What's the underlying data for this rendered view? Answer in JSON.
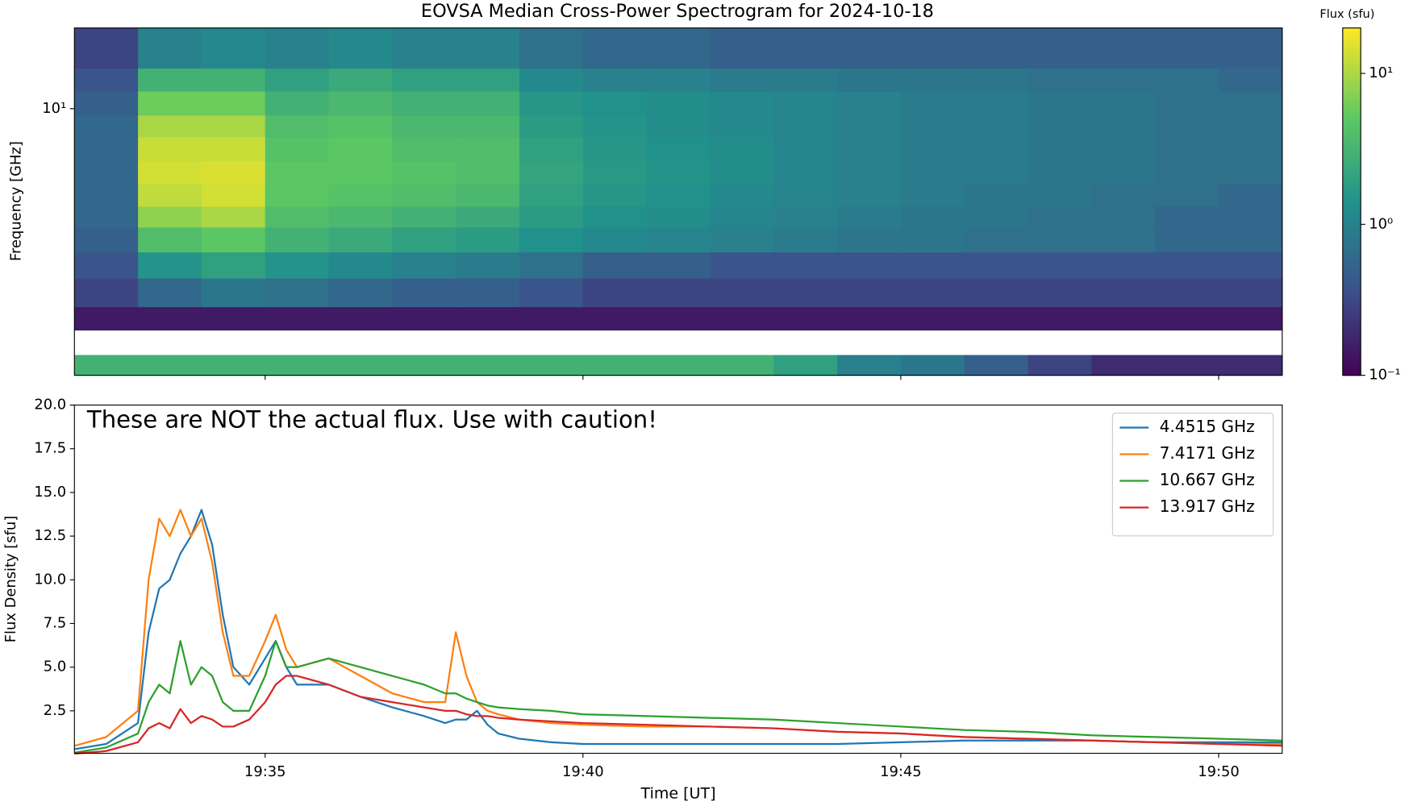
{
  "chart_data": [
    {
      "type": "heatmap",
      "title": "EOVSA Median Cross-Power Spectrogram for 2024-10-18",
      "ylabel": "Frequency [GHz]",
      "x_edges": [
        "19:32",
        "19:33",
        "19:34",
        "19:35",
        "19:36",
        "19:37",
        "19:38",
        "19:39",
        "19:40",
        "19:41",
        "19:42",
        "19:43",
        "19:44",
        "19:45",
        "19:46",
        "19:47",
        "19:48",
        "19:49",
        "19:50",
        "19:51"
      ],
      "y_edges": [
        1.2,
        1.41,
        1.72,
        2.07,
        2.6,
        3.2,
        3.9,
        4.6,
        5.5,
        6.6,
        8,
        9.5,
        11.5,
        13.8,
        19
      ],
      "values": [
        [
          3,
          3,
          3,
          3,
          3,
          3,
          3,
          3,
          3,
          3,
          3,
          2,
          1,
          0.8,
          0.5,
          0.3,
          0.2,
          0.2,
          0.2
        ],
        [
          null,
          null,
          null,
          null,
          null,
          null,
          null,
          null,
          null,
          null,
          null,
          null,
          null,
          null,
          null,
          null,
          null,
          null,
          null
        ],
        [
          0.15,
          0.15,
          0.15,
          0.15,
          0.15,
          0.15,
          0.15,
          0.15,
          0.15,
          0.15,
          0.15,
          0.15,
          0.15,
          0.15,
          0.15,
          0.15,
          0.15,
          0.15,
          0.15
        ],
        [
          0.3,
          0.6,
          0.8,
          0.7,
          0.6,
          0.5,
          0.5,
          0.4,
          0.3,
          0.3,
          0.3,
          0.3,
          0.3,
          0.3,
          0.3,
          0.3,
          0.3,
          0.3,
          0.3
        ],
        [
          0.4,
          1.5,
          2,
          1.5,
          1.2,
          1.0,
          0.9,
          0.7,
          0.5,
          0.5,
          0.4,
          0.4,
          0.4,
          0.4,
          0.4,
          0.4,
          0.4,
          0.4,
          0.4
        ],
        [
          0.5,
          4,
          5,
          3,
          2.5,
          2,
          1.8,
          1.4,
          1.2,
          1.1,
          1.0,
          0.9,
          0.8,
          0.8,
          0.7,
          0.7,
          0.7,
          0.6,
          0.6
        ],
        [
          0.6,
          8,
          10,
          4,
          3.5,
          3,
          2.5,
          1.8,
          1.4,
          1.3,
          1.1,
          1.0,
          0.9,
          0.8,
          0.8,
          0.7,
          0.7,
          0.6,
          0.6
        ],
        [
          0.6,
          12,
          14,
          5,
          4.5,
          4,
          3.5,
          2,
          1.6,
          1.4,
          1.2,
          1.1,
          1.0,
          0.9,
          0.8,
          0.8,
          0.7,
          0.7,
          0.6
        ],
        [
          0.6,
          14,
          15,
          5,
          5,
          4.5,
          4,
          2.2,
          1.7,
          1.5,
          1.3,
          1.1,
          1.0,
          0.9,
          0.9,
          0.8,
          0.8,
          0.7,
          0.7
        ],
        [
          0.6,
          13,
          13,
          4.5,
          5,
          4,
          4,
          2,
          1.6,
          1.4,
          1.3,
          1.1,
          1.0,
          0.9,
          0.9,
          0.8,
          0.8,
          0.7,
          0.7
        ],
        [
          0.6,
          10,
          10,
          4,
          4.5,
          3.5,
          3.5,
          1.8,
          1.5,
          1.3,
          1.2,
          1.1,
          1.0,
          0.9,
          0.9,
          0.8,
          0.8,
          0.7,
          0.7
        ],
        [
          0.5,
          6,
          6,
          3,
          3.5,
          3,
          3,
          1.6,
          1.4,
          1.3,
          1.2,
          1.1,
          1.0,
          0.9,
          0.9,
          0.8,
          0.8,
          0.7,
          0.7
        ],
        [
          0.4,
          3,
          3,
          2,
          2.5,
          2,
          2,
          1.2,
          1.0,
          1.0,
          0.9,
          0.9,
          0.8,
          0.8,
          0.8,
          0.7,
          0.7,
          0.7,
          0.6
        ],
        [
          0.3,
          1,
          1.2,
          1,
          1.2,
          1,
          1,
          0.7,
          0.6,
          0.6,
          0.5,
          0.5,
          0.5,
          0.5,
          0.5,
          0.5,
          0.5,
          0.5,
          0.5
        ]
      ],
      "yscale": "log",
      "ylim": [
        1.2,
        19
      ],
      "yticks": [
        {
          "value": 10,
          "label": "10¹"
        }
      ],
      "xlim": [
        "19:32",
        "19:51"
      ],
      "xticks": [
        "19:35",
        "19:40",
        "19:45",
        "19:50"
      ],
      "colormap": "viridis",
      "colorbar": {
        "label": "Flux (sfu)",
        "scale": "log",
        "lim": [
          0.1,
          20
        ],
        "ticks": [
          {
            "value": 0.1,
            "label": "10⁻¹"
          },
          {
            "value": 1,
            "label": "10⁰"
          },
          {
            "value": 10,
            "label": "10¹"
          }
        ]
      }
    },
    {
      "type": "line",
      "xlabel": "Time [UT]",
      "ylabel": "Flux Density [sfu]",
      "annotation": "These are NOT the actual flux. Use with caution!",
      "x": [
        "19:32:00",
        "19:32:30",
        "19:33:00",
        "19:33:10",
        "19:33:20",
        "19:33:30",
        "19:33:40",
        "19:33:50",
        "19:34:00",
        "19:34:10",
        "19:34:20",
        "19:34:30",
        "19:34:45",
        "19:35:00",
        "19:35:10",
        "19:35:20",
        "19:35:30",
        "19:36:00",
        "19:36:30",
        "19:37:00",
        "19:37:30",
        "19:37:50",
        "19:38:00",
        "19:38:10",
        "19:38:20",
        "19:38:30",
        "19:38:40",
        "19:39:00",
        "19:39:30",
        "19:40:00",
        "19:41:00",
        "19:42:00",
        "19:43:00",
        "19:44:00",
        "19:45:00",
        "19:46:00",
        "19:47:00",
        "19:48:00",
        "19:49:00",
        "19:50:00",
        "19:51:00"
      ],
      "series": [
        {
          "name": "4.4515 GHz",
          "color": "#1f77b4",
          "values": [
            0.3,
            0.6,
            1.8,
            7,
            9.5,
            10,
            11.5,
            12.5,
            14,
            12,
            8,
            5,
            4,
            5.5,
            6.5,
            5,
            4,
            4,
            3.3,
            2.7,
            2.2,
            1.8,
            2,
            2,
            2.5,
            1.7,
            1.2,
            0.9,
            0.7,
            0.6,
            0.6,
            0.6,
            0.6,
            0.6,
            0.7,
            0.8,
            0.8,
            0.8,
            0.7,
            0.7,
            0.7
          ]
        },
        {
          "name": "7.4171 GHz",
          "color": "#ff7f0e",
          "values": [
            0.5,
            1.0,
            2.5,
            10,
            13.5,
            12.5,
            14,
            12.5,
            13.5,
            11,
            7,
            4.5,
            4.5,
            6.5,
            8,
            6,
            5,
            5.5,
            4.5,
            3.5,
            3,
            3,
            7,
            4.5,
            3,
            2.5,
            2.3,
            2.0,
            1.8,
            1.7,
            1.6,
            1.6,
            1.5,
            1.3,
            1.2,
            1.0,
            0.9,
            0.8,
            0.7,
            0.6,
            0.6
          ]
        },
        {
          "name": "10.667 GHz",
          "color": "#2ca02c",
          "values": [
            0.1,
            0.4,
            1.2,
            3,
            4,
            3.5,
            6.5,
            4,
            5,
            4.5,
            3,
            2.5,
            2.5,
            4.5,
            6.5,
            5,
            5,
            5.5,
            5,
            4.5,
            4,
            3.5,
            3.5,
            3.2,
            3,
            2.8,
            2.7,
            2.6,
            2.5,
            2.3,
            2.2,
            2.1,
            2.0,
            1.8,
            1.6,
            1.4,
            1.3,
            1.1,
            1.0,
            0.9,
            0.8
          ]
        },
        {
          "name": "13.917 GHz",
          "color": "#d62728",
          "values": [
            0.05,
            0.2,
            0.7,
            1.5,
            1.8,
            1.5,
            2.6,
            1.8,
            2.2,
            2.0,
            1.6,
            1.6,
            2,
            3,
            4,
            4.5,
            4.5,
            4,
            3.3,
            3,
            2.7,
            2.5,
            2.5,
            2.3,
            2.2,
            2.2,
            2.1,
            2.0,
            1.9,
            1.8,
            1.7,
            1.6,
            1.5,
            1.3,
            1.2,
            1.0,
            0.9,
            0.8,
            0.7,
            0.6,
            0.5
          ]
        }
      ],
      "xlim": [
        "19:32",
        "19:51"
      ],
      "ylim": [
        0.07,
        20
      ],
      "xticks": [
        "19:35",
        "19:40",
        "19:45",
        "19:50"
      ],
      "yticks": [
        2.5,
        {
          "value": 5,
          "label": "5.0"
        },
        7.5,
        {
          "value": 10,
          "label": "10.0"
        },
        12.5,
        {
          "value": 15,
          "label": "15.0"
        },
        17.5,
        {
          "value": 20,
          "label": "20.0"
        }
      ],
      "legend": "upper right"
    }
  ]
}
